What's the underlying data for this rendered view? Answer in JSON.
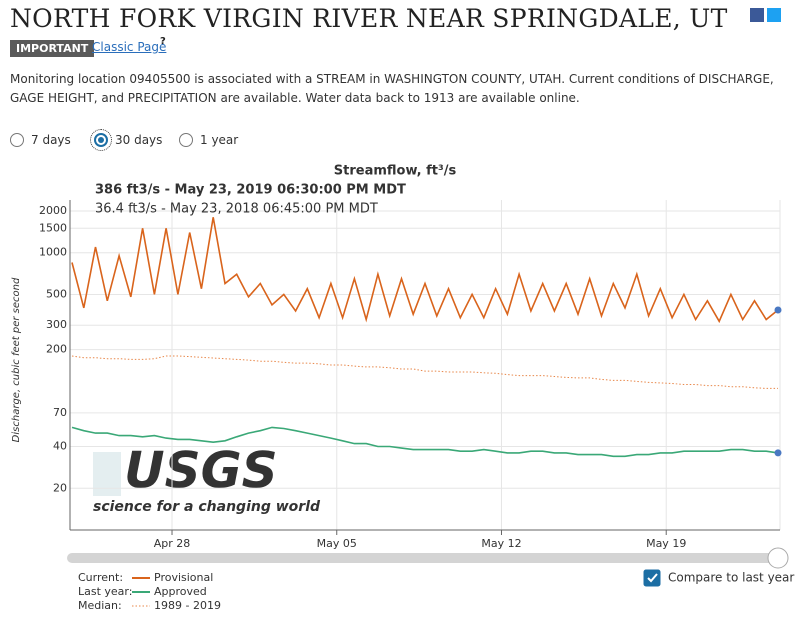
{
  "header": {
    "title": "NORTH FORK VIRGIN RIVER NEAR SPRINGDALE, UT",
    "badge": "IMPORTANT",
    "link": "Classic Page",
    "help": "?"
  },
  "description": "Monitoring location 09405500 is associated with a STREAM in WASHINGTON COUNTY, UTAH. Current conditions of DISCHARGE, GAGE HEIGHT, and PRECIPITATION are available. Water data back to 1913 are available online.",
  "periods": {
    "options": [
      "7 days",
      "30 days",
      "1 year"
    ],
    "selected": 1
  },
  "chart_data": {
    "type": "line",
    "title": "Streamflow, ft³/s",
    "tooltip": [
      "386 ft3/s - May 23, 2019 06:30:00 PM MDT",
      "36.4 ft3/s - May 23, 2018 06:45:00 PM MDT"
    ],
    "y_label": "Discharge, cubic feet per second",
    "watermark": [
      "USGS",
      "science for a changing world"
    ],
    "log_y": true,
    "grid": true,
    "xlim": [
      0,
      60
    ],
    "xticks": [
      {
        "value": 8.5,
        "label": "Apr 28"
      },
      {
        "value": 22.5,
        "label": "May 05"
      },
      {
        "value": 36.5,
        "label": "May 12"
      },
      {
        "value": 50.5,
        "label": "May 19"
      }
    ],
    "ylim": [
      10,
      2400
    ],
    "yticks": [
      20,
      40,
      70,
      200,
      300,
      500,
      1000,
      1500,
      2000
    ],
    "series": [
      {
        "name": "Provisional",
        "label": "Current:",
        "color": "#d9641c",
        "dash": "solid",
        "values": [
          850,
          400,
          1100,
          450,
          950,
          480,
          1500,
          500,
          1500,
          500,
          1400,
          550,
          1800,
          600,
          700,
          480,
          600,
          420,
          500,
          380,
          550,
          340,
          600,
          340,
          650,
          330,
          700,
          350,
          650,
          360,
          600,
          350,
          550,
          340,
          500,
          340,
          550,
          360,
          700,
          380,
          600,
          380,
          600,
          360,
          650,
          350,
          600,
          400,
          700,
          350,
          550,
          340,
          500,
          330,
          450,
          320,
          500,
          330,
          450,
          330,
          386
        ]
      },
      {
        "name": "Approved",
        "label": "Last year:",
        "color": "#3aa877",
        "dash": "solid",
        "values": [
          55,
          52,
          50,
          50,
          48,
          48,
          47,
          48,
          46,
          45,
          45,
          44,
          43,
          44,
          47,
          50,
          52,
          55,
          54,
          52,
          50,
          48,
          46,
          44,
          42,
          42,
          40,
          40,
          39,
          38,
          38,
          38,
          38,
          37,
          37,
          38,
          37,
          36,
          36,
          37,
          37,
          36,
          36,
          35,
          35,
          35,
          34,
          34,
          35,
          35,
          36,
          36,
          37,
          37,
          37,
          37,
          38,
          38,
          37,
          37,
          36
        ]
      },
      {
        "name": "1989 - 2019",
        "label": "Median:",
        "color": "#e8874a",
        "dash": "dotted",
        "values": [
          180,
          175,
          175,
          172,
          172,
          170,
          170,
          172,
          180,
          180,
          178,
          176,
          174,
          172,
          170,
          168,
          165,
          165,
          162,
          160,
          160,
          158,
          155,
          155,
          152,
          150,
          150,
          148,
          145,
          145,
          140,
          140,
          138,
          138,
          138,
          136,
          135,
          132,
          130,
          130,
          130,
          128,
          126,
          125,
          125,
          122,
          120,
          120,
          118,
          116,
          115,
          114,
          112,
          112,
          110,
          110,
          108,
          108,
          106,
          105,
          105
        ]
      }
    ]
  },
  "compare": {
    "label": "Compare to last year",
    "checked": true
  }
}
